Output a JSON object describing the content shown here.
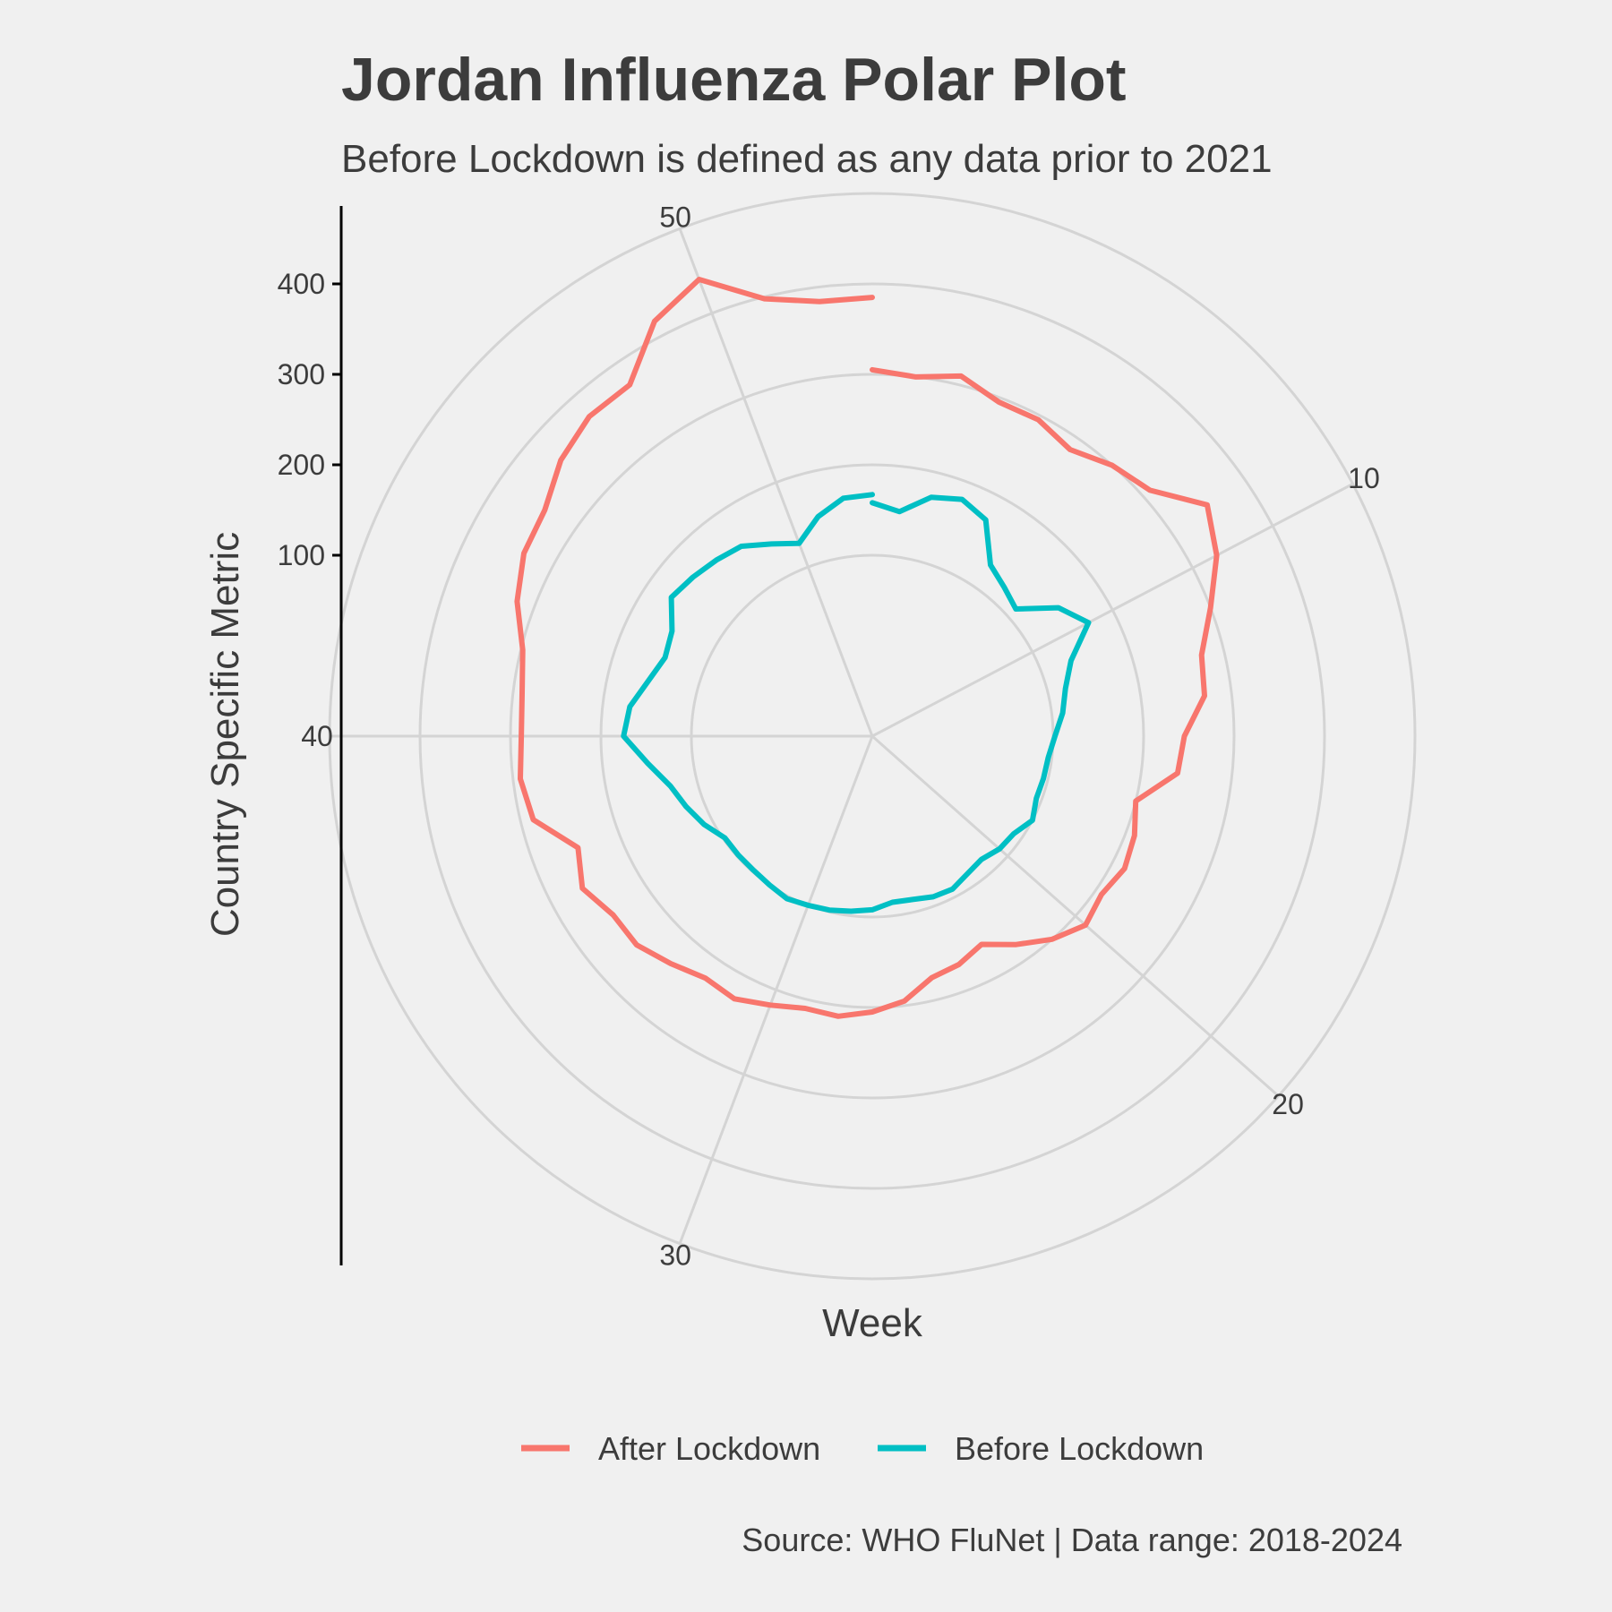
{
  "chart_data": {
    "type": "line",
    "coordinate_system": "polar",
    "title": "Jordan Influenza Polar Plot",
    "subtitle": "Before Lockdown is defined as any data prior to 2021",
    "xlabel": "Week",
    "ylabel": "Country Specific Metric",
    "caption": "Source: WHO FluNet | Data range: 2018-2024",
    "x_ticks": [
      10,
      20,
      30,
      40,
      50
    ],
    "y_ticks": [
      100,
      200,
      300,
      400
    ],
    "xlim": [
      1,
      53
    ],
    "ylim": [
      -100,
      500
    ],
    "grid": true,
    "legend_position": "bottom",
    "series": [
      {
        "name": "After Lockdown",
        "color": "#f8766d",
        "x": [
          1,
          2,
          3,
          4,
          5,
          6,
          7,
          8,
          9,
          10,
          11,
          12,
          13,
          14,
          15,
          16,
          17,
          18,
          19,
          20,
          21,
          22,
          23,
          24,
          25,
          26,
          27,
          28,
          29,
          30,
          31,
          32,
          33,
          34,
          35,
          36,
          37,
          38,
          39,
          40,
          41,
          42,
          43,
          44,
          45,
          46,
          47,
          48,
          49,
          50,
          51,
          52,
          53
        ],
        "values": [
          305,
          300,
          310,
          295,
          295,
          285,
          300,
          310,
          350,
          330,
          300,
          275,
          270,
          245,
          240,
          200,
          210,
          215,
          208,
          215,
          200,
          180,
          160,
          170,
          175,
          195,
          205,
          212,
          210,
          218,
          228,
          225,
          236,
          248,
          248,
          262,
          248,
          286,
          292,
          288,
          290,
          298,
          320,
          335,
          340,
          360,
          372,
          372,
          418,
          440,
          398,
          384,
          385
        ]
      },
      {
        "name": "Before Lockdown",
        "color": "#00bfc4",
        "x": [
          1,
          2,
          3,
          4,
          5,
          6,
          7,
          8,
          9,
          10,
          11,
          12,
          13,
          14,
          15,
          16,
          17,
          18,
          19,
          20,
          21,
          22,
          23,
          24,
          25,
          26,
          27,
          28,
          29,
          30,
          31,
          32,
          33,
          34,
          35,
          36,
          37,
          38,
          39,
          40,
          41,
          42,
          43,
          44,
          45,
          46,
          47,
          48,
          49,
          50,
          51,
          52,
          53
        ],
        "values": [
          158,
          150,
          172,
          180,
          170,
          130,
          120,
          112,
          150,
          170,
          135,
          120,
          112,
          102,
          96,
          95,
          94,
          100,
          90,
          88,
          82,
          85,
          91,
          90,
          86,
          85,
          92,
          95,
          98,
          100,
          103,
          100,
          98,
          98,
          98,
          110,
          120,
          130,
          150,
          175,
          170,
          155,
          145,
          150,
          170,
          165,
          160,
          155,
          140,
          128,
          150,
          165,
          167
        ]
      }
    ]
  }
}
